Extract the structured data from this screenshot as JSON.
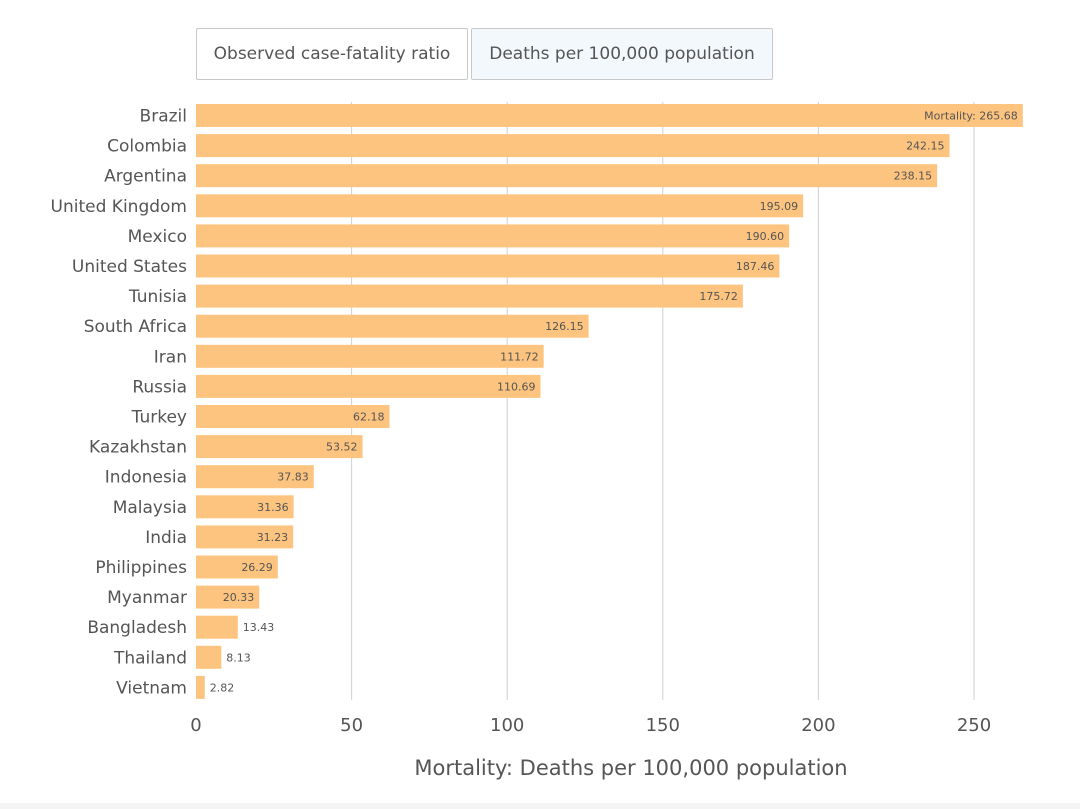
{
  "tabs": [
    {
      "label": "Observed case-fatality ratio",
      "active": false
    },
    {
      "label": "Deaths per 100,000 population",
      "active": true
    }
  ],
  "chart_data": {
    "type": "bar",
    "orientation": "horizontal",
    "title": "",
    "xlabel": "Mortality: Deaths per 100,000 population",
    "ylabel": "",
    "xlim": [
      0,
      265.68
    ],
    "xticks": [
      0,
      50,
      100,
      150,
      200,
      250
    ],
    "grid": true,
    "bar_color": "#fdc47f",
    "label_prefix_first": "Mortality: ",
    "categories": [
      "Brazil",
      "Colombia",
      "Argentina",
      "United Kingdom",
      "Mexico",
      "United States",
      "Tunisia",
      "South Africa",
      "Iran",
      "Russia",
      "Turkey",
      "Kazakhstan",
      "Indonesia",
      "Malaysia",
      "India",
      "Philippines",
      "Myanmar",
      "Bangladesh",
      "Thailand",
      "Vietnam"
    ],
    "values": [
      265.68,
      242.15,
      238.15,
      195.09,
      190.6,
      187.46,
      175.72,
      126.15,
      111.72,
      110.69,
      62.18,
      53.52,
      37.83,
      31.36,
      31.23,
      26.29,
      20.33,
      13.43,
      8.13,
      2.82
    ],
    "labels": [
      "Mortality: 265.68",
      "242.15",
      "238.15",
      "195.09",
      "190.60",
      "187.46",
      "175.72",
      "126.15",
      "111.72",
      "110.69",
      "62.18",
      "53.52",
      "37.83",
      "31.36",
      "31.23",
      "26.29",
      "20.33",
      "13.43",
      "8.13",
      "2.82"
    ]
  }
}
